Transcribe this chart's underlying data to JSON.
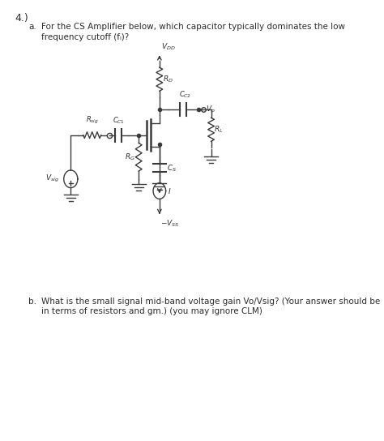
{
  "title_number": "4.)",
  "part_a_label": "a.",
  "part_a_text_line1": "For the CS Amplifier below, which capacitor typically dominates the low",
  "part_a_text_line2": "frequency cutoff (fₗ)?",
  "part_b_label": "b.",
  "part_b_text_line1": "What is the small signal mid-band voltage gain Vo/Vsig? (Your answer should be",
  "part_b_text_line2": "in terms of resistors and gm.) (you may ignore CLM)",
  "bg_color": "#ffffff",
  "text_color": "#2b2b2b",
  "circuit_color": "#3a3a3a",
  "font_size_main": 7.5,
  "title_fontsize": 9
}
